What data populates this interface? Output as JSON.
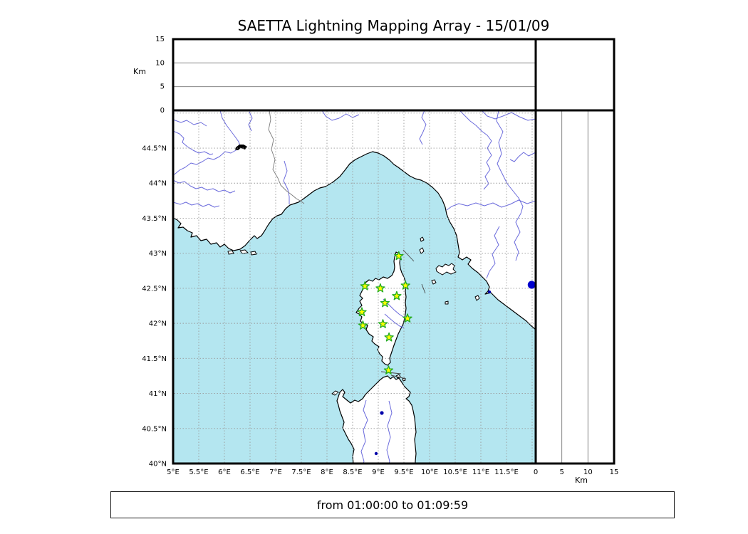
{
  "title": "SAETTA Lightning Mapping Array - 15/01/09",
  "caption": "from 01:00:00 to 01:09:59",
  "altitude_axis": {
    "label": "Km"
  },
  "colors": {
    "sea": "#b4e6f0",
    "land": "#ffffff",
    "coastline": "#000000",
    "river": "#6b6bdc",
    "country_border": "#7a7a7a",
    "map_grid": "#999999",
    "panel_grid": "#777777",
    "frame": "#000000",
    "station_fill": "#ffff00",
    "station_stroke": "#22aa22",
    "source_dot": "#0000cc"
  },
  "chart_data": {
    "type": "scatter",
    "title": "SAETTA Lightning Mapping Array - 15/01/09",
    "panels": {
      "top_altitude_vs_longitude": {
        "ylabel": "Km",
        "ylim": [
          0,
          15
        ],
        "yticks": [
          0,
          5,
          10,
          15
        ],
        "gridlines": [
          5,
          10
        ],
        "points": []
      },
      "right_altitude_vs_latitude": {
        "xlabel": "Km",
        "xlim": [
          0,
          15
        ],
        "xticks": [
          0,
          5,
          10,
          15
        ],
        "gridlines": [
          5,
          10
        ],
        "points": []
      },
      "map": {
        "lon_range": [
          5.0,
          12.07
        ],
        "lat_range": [
          40.0,
          45.04
        ],
        "lon_ticks": [
          {
            "value": 5,
            "label": "5°E"
          },
          {
            "value": 5.5,
            "label": "5.5°E"
          },
          {
            "value": 6,
            "label": "6°E"
          },
          {
            "value": 6.5,
            "label": "6.5°E"
          },
          {
            "value": 7,
            "label": "7°E"
          },
          {
            "value": 7.5,
            "label": "7.5°E"
          },
          {
            "value": 8,
            "label": "8°E"
          },
          {
            "value": 8.5,
            "label": "8.5°E"
          },
          {
            "value": 9,
            "label": "9°E"
          },
          {
            "value": 9.5,
            "label": "9.5°E"
          },
          {
            "value": 10,
            "label": "10°E"
          },
          {
            "value": 10.5,
            "label": "10.5°E"
          },
          {
            "value": 11,
            "label": "11°E"
          },
          {
            "value": 11.5,
            "label": "11.5°E"
          }
        ],
        "lat_ticks": [
          {
            "value": 40,
            "label": "40°N"
          },
          {
            "value": 40.5,
            "label": "40.5°N"
          },
          {
            "value": 41,
            "label": "41°N"
          },
          {
            "value": 41.5,
            "label": "41.5°N"
          },
          {
            "value": 42,
            "label": "42°N"
          },
          {
            "value": 42.5,
            "label": "42.5°N"
          },
          {
            "value": 43,
            "label": "43°N"
          },
          {
            "value": 43.5,
            "label": "43.5°N"
          },
          {
            "value": 44,
            "label": "44°N"
          },
          {
            "value": 44.5,
            "label": "44.5°N"
          }
        ],
        "grid_lons": [
          5.5,
          6,
          6.5,
          7,
          7.5,
          8,
          8.5,
          9,
          9.5,
          10,
          10.5,
          11,
          11.5,
          12
        ],
        "grid_lats": [
          40.5,
          41,
          41.5,
          42,
          42.5,
          43,
          43.5,
          44,
          44.5,
          45
        ],
        "stations": [
          {
            "lon": 9.4,
            "lat": 42.96
          },
          {
            "lon": 8.74,
            "lat": 42.53
          },
          {
            "lon": 9.04,
            "lat": 42.5
          },
          {
            "lon": 9.53,
            "lat": 42.54
          },
          {
            "lon": 9.36,
            "lat": 42.39
          },
          {
            "lon": 9.13,
            "lat": 42.29
          },
          {
            "lon": 8.68,
            "lat": 42.16
          },
          {
            "lon": 9.57,
            "lat": 42.07
          },
          {
            "lon": 9.09,
            "lat": 41.99
          },
          {
            "lon": 8.7,
            "lat": 41.97
          },
          {
            "lon": 9.21,
            "lat": 41.8
          },
          {
            "lon": 9.2,
            "lat": 41.33
          }
        ],
        "sources": [
          {
            "lon": 11.99,
            "lat": 42.55
          }
        ]
      }
    }
  }
}
